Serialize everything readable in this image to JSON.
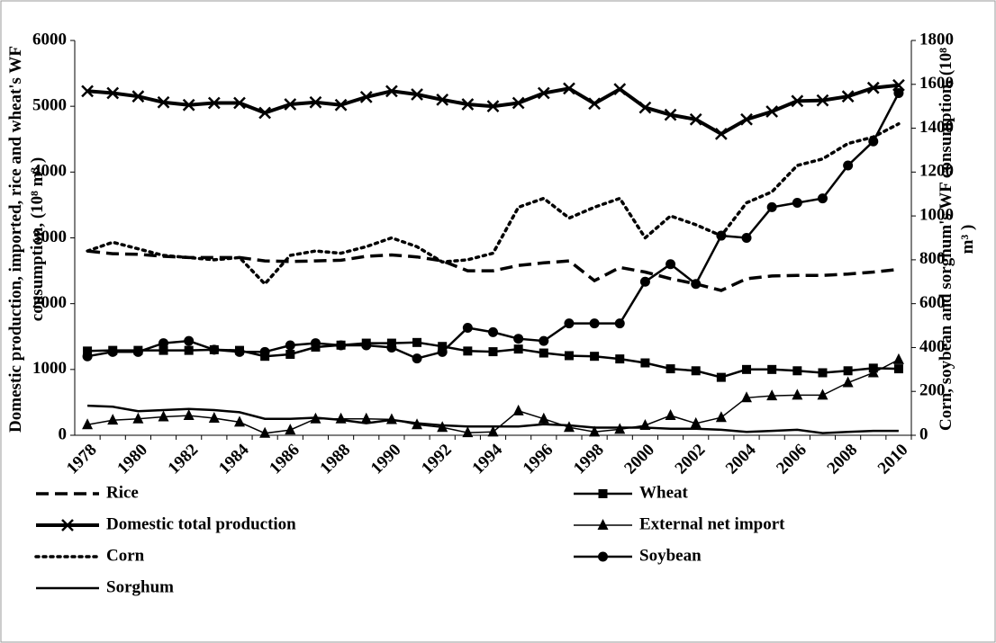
{
  "chart_data": {
    "type": "line",
    "y_label": "Domestic production,  imported, rice and wheat's WF consumption, (10⁸ m³ )",
    "y2_label": "Corn, soybean and sorghum's WF consumption, (10⁸ m³ )",
    "categories": [
      "1978",
      null,
      "1980",
      null,
      "1982",
      null,
      "1984",
      null,
      "1986",
      null,
      "1988",
      null,
      "1990",
      null,
      "1992",
      null,
      "1994",
      null,
      "1996",
      null,
      "1998",
      null,
      "2000",
      null,
      "2002",
      null,
      "2004",
      null,
      "2006",
      null,
      "2008",
      null,
      "2010"
    ],
    "ylim": [
      0,
      6000
    ],
    "yticks": [
      0,
      1000,
      2000,
      3000,
      4000,
      5000,
      6000
    ],
    "y2lim": [
      0,
      1800
    ],
    "y2ticks": [
      0,
      200,
      400,
      600,
      800,
      1000,
      1200,
      1400,
      1600,
      1800
    ],
    "series": [
      {
        "name": "Rice",
        "color": "#000000",
        "marker": "none",
        "dash": "dash",
        "width": 3.5,
        "values": [
          2800,
          2760,
          2750,
          2720,
          2700,
          2700,
          2700,
          2650,
          2640,
          2650,
          2660,
          2720,
          2740,
          2710,
          2650,
          2500,
          2500,
          2580,
          2620,
          2650,
          2350,
          2550,
          2480,
          2380,
          2300,
          2200,
          2380,
          2420,
          2430,
          2430,
          2450,
          2480,
          2520
        ]
      },
      {
        "name": "Wheat",
        "color": "#000000",
        "marker": "square",
        "dash": "solid",
        "width": 2.5,
        "values": [
          1280,
          1290,
          1290,
          1290,
          1290,
          1300,
          1290,
          1200,
          1230,
          1340,
          1370,
          1400,
          1400,
          1410,
          1350,
          1280,
          1270,
          1310,
          1250,
          1210,
          1200,
          1160,
          1100,
          1010,
          980,
          880,
          1000,
          1000,
          980,
          950,
          980,
          1020,
          1010
        ]
      },
      {
        "name": "Domestic total production",
        "color": "#000000",
        "marker": "x",
        "dash": "solid",
        "width": 4,
        "values": [
          5230,
          5200,
          5150,
          5060,
          5020,
          5050,
          5050,
          4900,
          5030,
          5060,
          5020,
          5140,
          5230,
          5180,
          5100,
          5030,
          5000,
          5050,
          5200,
          5270,
          5040,
          5260,
          4980,
          4870,
          4800,
          4580,
          4800,
          4920,
          5080,
          5090,
          5150,
          5280,
          5320
        ]
      },
      {
        "name": "External net import",
        "color": "#000000",
        "marker": "triangle",
        "dash": "solid",
        "width": 1.5,
        "values": [
          160,
          230,
          250,
          280,
          300,
          260,
          200,
          30,
          80,
          250,
          250,
          250,
          240,
          160,
          120,
          40,
          50,
          370,
          250,
          120,
          50,
          90,
          150,
          300,
          180,
          270,
          570,
          600,
          610,
          610,
          800,
          950,
          1150
        ]
      },
      {
        "name": "Corn",
        "color": "#000000",
        "marker": "none",
        "dash": "dot",
        "width": 3.5,
        "axis": "y2",
        "values": [
          840,
          880,
          850,
          820,
          810,
          800,
          810,
          690,
          820,
          840,
          830,
          860,
          900,
          860,
          790,
          800,
          830,
          1040,
          1080,
          990,
          1040,
          1080,
          900,
          1000,
          960,
          910,
          1060,
          1110,
          1230,
          1260,
          1330,
          1360,
          1420
        ]
      },
      {
        "name": "Soybean",
        "color": "#000000",
        "marker": "circle",
        "dash": "solid",
        "width": 2.5,
        "axis": "y2",
        "values": [
          360,
          380,
          380,
          420,
          430,
          390,
          380,
          380,
          410,
          420,
          410,
          410,
          400,
          350,
          380,
          490,
          470,
          440,
          430,
          510,
          510,
          510,
          700,
          780,
          690,
          910,
          900,
          1040,
          1060,
          1080,
          1230,
          1340,
          1560
        ]
      },
      {
        "name": "Sorghum",
        "color": "#000000",
        "marker": "none",
        "dash": "solid",
        "width": 2.5,
        "axis": "y2",
        "values": [
          135,
          130,
          110,
          115,
          120,
          115,
          105,
          75,
          75,
          80,
          70,
          55,
          70,
          55,
          45,
          40,
          40,
          40,
          50,
          45,
          35,
          35,
          35,
          30,
          30,
          25,
          15,
          20,
          25,
          10,
          15,
          20,
          20
        ]
      }
    ]
  }
}
